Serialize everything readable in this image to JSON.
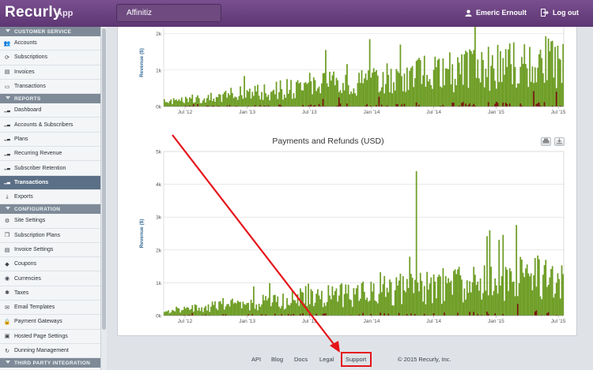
{
  "header": {
    "logo": "Recurly",
    "logo_sub": "App",
    "account": "Affinitiz",
    "user_name": "Emeric Ernoult",
    "logout": "Log out"
  },
  "sidebar": {
    "sections": [
      {
        "title": "CUSTOMER SERVICE",
        "items": [
          {
            "label": "Accounts",
            "icon": "users-icon"
          },
          {
            "label": "Subscriptions",
            "icon": "refresh-icon"
          },
          {
            "label": "Invoices",
            "icon": "document-icon"
          },
          {
            "label": "Transactions",
            "icon": "card-icon"
          }
        ]
      },
      {
        "title": "REPORTS",
        "items": [
          {
            "label": "Dashboard",
            "icon": "bar-chart-icon"
          },
          {
            "label": "Accounts & Subscribers",
            "icon": "bar-chart-icon"
          },
          {
            "label": "Plans",
            "icon": "bar-chart-icon"
          },
          {
            "label": "Recurring Revenue",
            "icon": "bar-chart-icon"
          },
          {
            "label": "Subscriber Retention",
            "icon": "bar-chart-icon"
          },
          {
            "label": "Transactions",
            "icon": "bar-chart-icon",
            "active": true
          },
          {
            "label": "Exports",
            "icon": "download-icon"
          }
        ]
      },
      {
        "title": "CONFIGURATION",
        "items": [
          {
            "label": "Site Settings",
            "icon": "gears-icon"
          },
          {
            "label": "Subscription Plans",
            "icon": "copy-icon"
          },
          {
            "label": "Invoice Settings",
            "icon": "document-icon"
          },
          {
            "label": "Coupons",
            "icon": "tag-icon"
          },
          {
            "label": "Currencies",
            "icon": "coins-icon"
          },
          {
            "label": "Taxes",
            "icon": "asterisk-icon"
          },
          {
            "label": "Email Templates",
            "icon": "envelope-icon"
          },
          {
            "label": "Payment Gateways",
            "icon": "lock-icon"
          },
          {
            "label": "Hosted Page Settings",
            "icon": "window-icon"
          },
          {
            "label": "Dunning Management",
            "icon": "cycle-icon"
          }
        ]
      },
      {
        "title": "THIRD PARTY INTEGRATION",
        "items": []
      }
    ]
  },
  "chart_data": [
    {
      "type": "bar",
      "title": "",
      "ylabel": "Revenue ($)",
      "ylim": [
        0,
        2400
      ],
      "yticks": [
        "0k",
        "1k",
        "2k"
      ],
      "xticks": [
        "Jul '12",
        "Jan '13",
        "Jul '13",
        "Jan '14",
        "Jul '14",
        "Jan '15",
        "Jul '15"
      ],
      "x_range": [
        "2012-04",
        "2015-07"
      ],
      "series": [
        {
          "name": "",
          "color": "#6f9e27"
        },
        {
          "name": "",
          "color": "#7a0f0f"
        }
      ],
      "grid": true,
      "note": "daily payments (green) and refunds (dark red); payments trend from ~200 up to ~1500+"
    },
    {
      "type": "bar",
      "title": "Payments and Refunds (USD)",
      "ylabel": "Revenue ($)",
      "ylim": [
        0,
        5000
      ],
      "yticks": [
        "0k",
        "1k",
        "2k",
        "3k",
        "4k",
        "5k"
      ],
      "xticks": [
        "Jul '12",
        "Jan '13",
        "Jul '13",
        "Jan '14",
        "Jul '14",
        "Jan '15",
        "Jul '15"
      ],
      "x_range": [
        "2012-04",
        "2015-07"
      ],
      "series": [
        {
          "name": "",
          "color": "#6f9e27"
        },
        {
          "name": "",
          "color": "#7a0f0f"
        }
      ],
      "grid": true,
      "peak_value": 4400
    }
  ],
  "footer": {
    "links": [
      "API",
      "Blog",
      "Docs",
      "Legal",
      "Support"
    ],
    "copyright": "© 2015 Recurly, Inc."
  },
  "annotation": {
    "color": "#e5141a",
    "highlight": "Support"
  }
}
